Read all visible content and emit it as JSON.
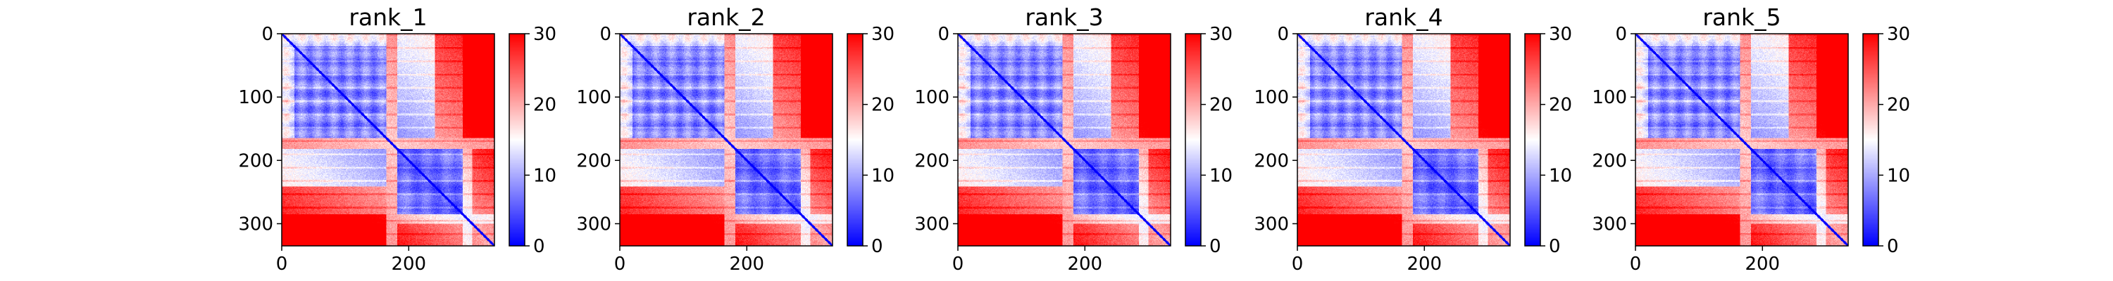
{
  "chart_data": {
    "type": "heatmap",
    "colormap": {
      "name": "bwr",
      "colors": [
        "#0000ff",
        "#ffffff",
        "#ff0000"
      ]
    },
    "panels": [
      {
        "title": "rank_1"
      },
      {
        "title": "rank_2"
      },
      {
        "title": "rank_3"
      },
      {
        "title": "rank_4"
      },
      {
        "title": "rank_5"
      }
    ],
    "x_range": [
      0,
      335
    ],
    "y_range": [
      335,
      0
    ],
    "x_ticks": [
      0,
      200
    ],
    "y_ticks": [
      0,
      100,
      200,
      300
    ],
    "color_range": [
      0,
      30
    ],
    "colorbar_ticks": [
      0,
      10,
      20,
      30
    ],
    "structure": {
      "length": 335,
      "domain_breaks": [
        165,
        182,
        285,
        300
      ],
      "note_free": true
    }
  }
}
